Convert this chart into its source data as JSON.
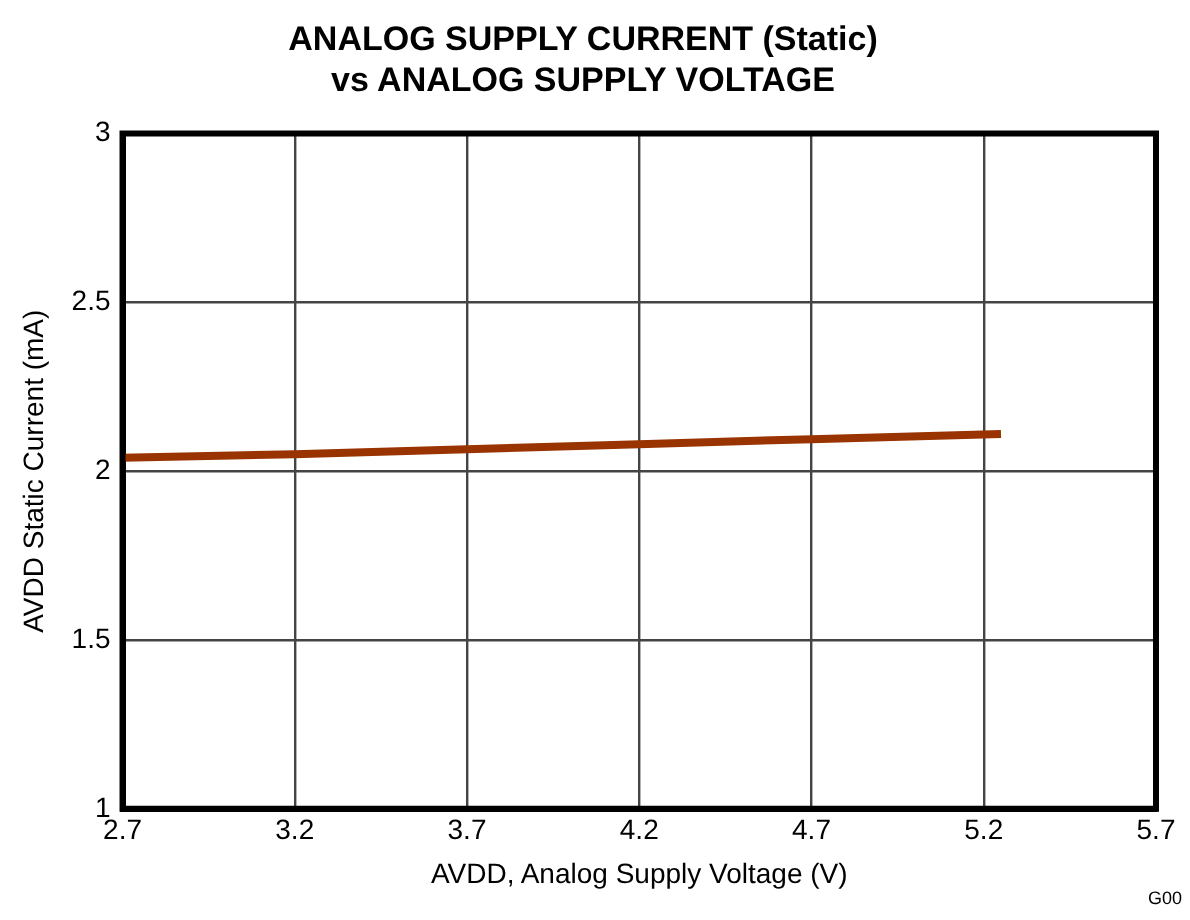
{
  "chart_data": {
    "type": "line",
    "title": [
      "ANALOG SUPPLY CURRENT (Static)",
      "vs ANALOG SUPPLY VOLTAGE"
    ],
    "xlabel": "AVDD, Analog Supply Voltage (V)",
    "ylabel": "AVDD Static Current (mA)",
    "x": [
      2.7,
      3.2,
      3.7,
      4.2,
      4.7,
      5.25
    ],
    "series": [
      {
        "color": "#993300",
        "values": [
          2.04,
          2.05,
          2.065,
          2.08,
          2.095,
          2.11
        ]
      }
    ],
    "xlim": [
      2.7,
      5.7
    ],
    "xticks": [
      2.7,
      3.2,
      3.7,
      4.2,
      4.7,
      5.2,
      5.7
    ],
    "ylim": [
      1,
      3
    ],
    "yticks": [
      1,
      1.5,
      2,
      2.5,
      3
    ],
    "grid": true,
    "legend": false,
    "marker": "none",
    "line_style": "solid",
    "annotations": [
      "G00"
    ]
  }
}
